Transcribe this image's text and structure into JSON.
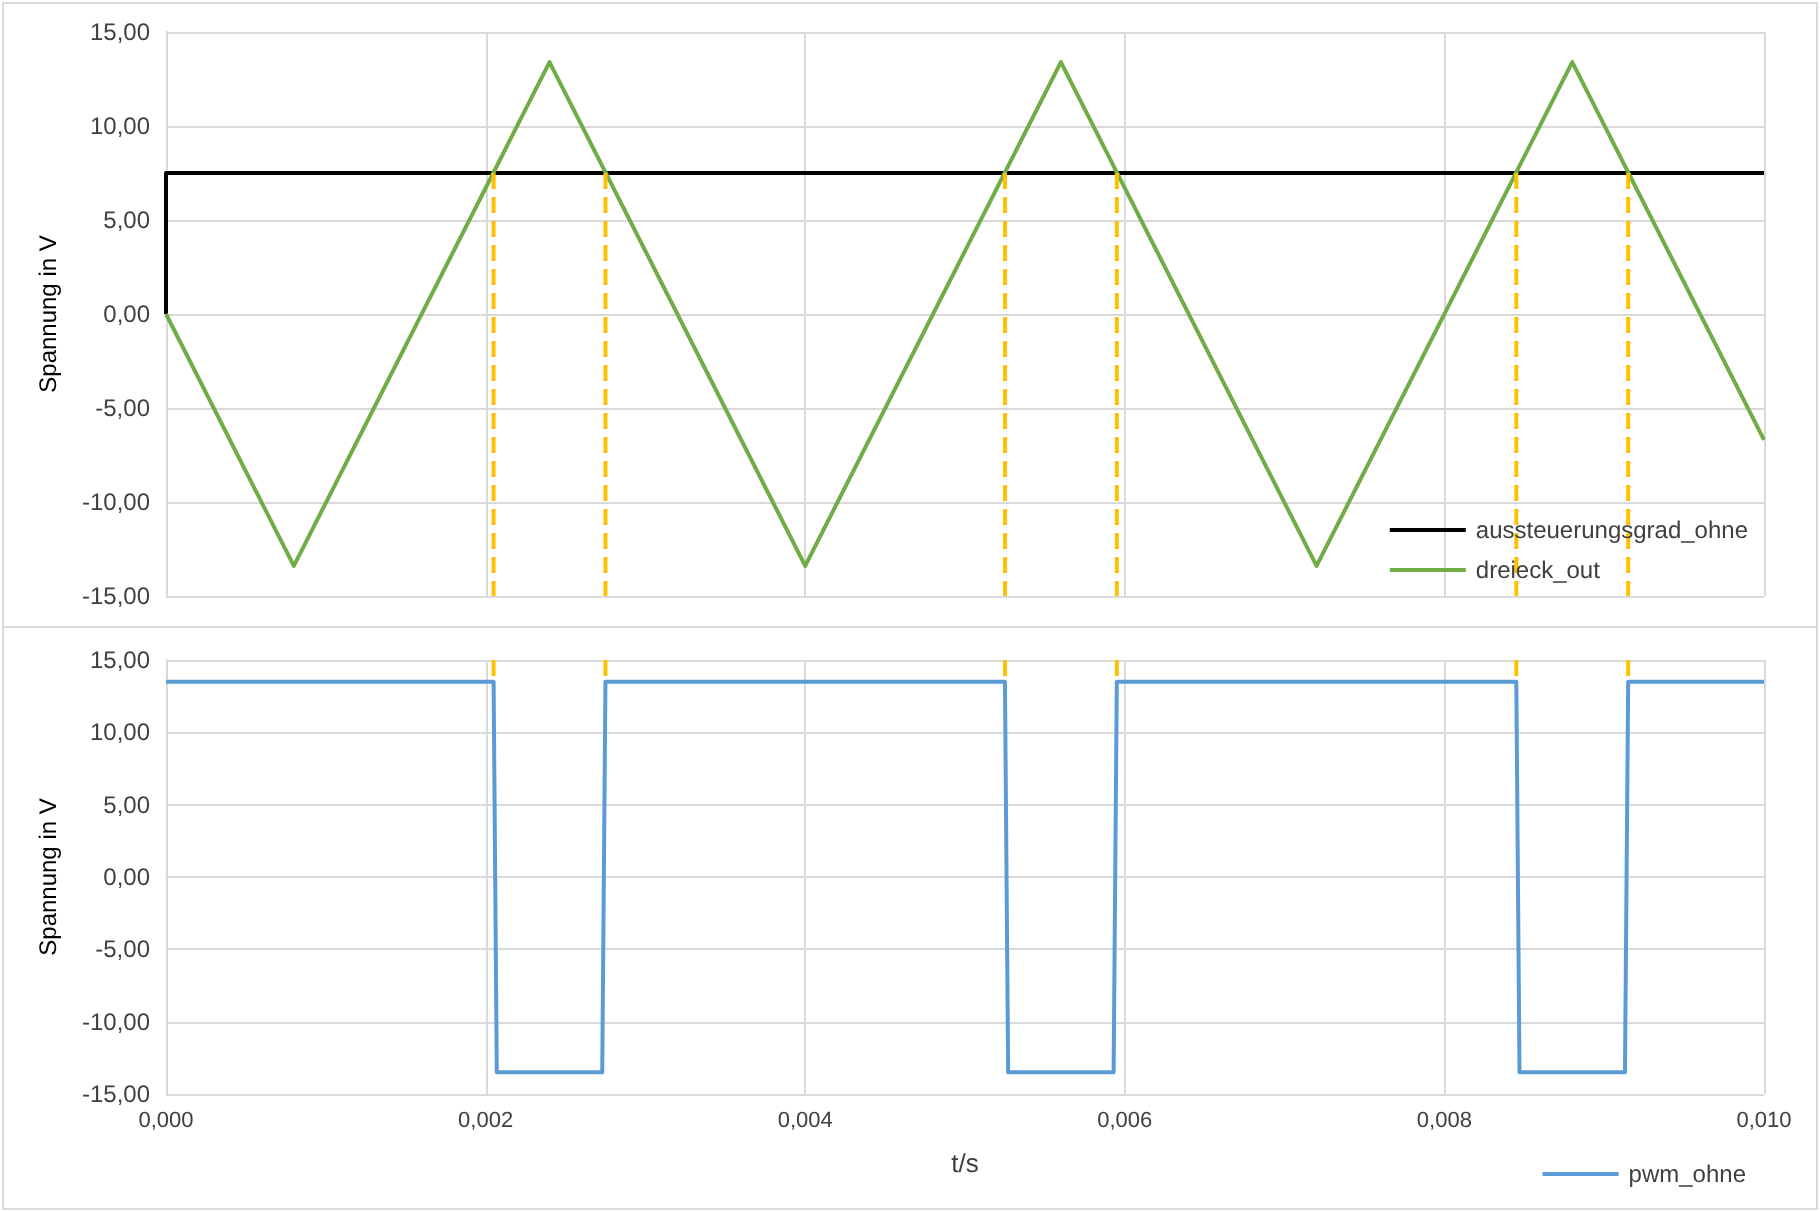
{
  "chart_data": [
    {
      "type": "line",
      "ylabel": "Spannung in V",
      "xlim": [
        0,
        0.01
      ],
      "xticks": [
        {
          "value": 0,
          "label": null
        },
        {
          "value": 0.002,
          "label": null
        },
        {
          "value": 0.004,
          "label": null
        },
        {
          "value": 0.006,
          "label": null
        },
        {
          "value": 0.008,
          "label": null
        },
        {
          "value": 0.01,
          "label": null
        }
      ],
      "ylim": [
        -15,
        15
      ],
      "yticks": [
        {
          "value": -15,
          "label": "-15,00"
        },
        {
          "value": -10,
          "label": "-10,00"
        },
        {
          "value": -5,
          "label": "-5,00"
        },
        {
          "value": 0,
          "label": "0,00"
        },
        {
          "value": 5,
          "label": "5,00"
        },
        {
          "value": 10,
          "label": "10,00"
        },
        {
          "value": 15,
          "label": "15,00"
        }
      ],
      "tick_labels": "y",
      "grid": true,
      "legend": "bottom right",
      "marker": "none",
      "series": [
        {
          "name": "aussteuerungsgrad_ohne",
          "color": "#000000",
          "x": [
            0,
            0,
            0.01
          ],
          "values": [
            0,
            7.5,
            7.5
          ]
        },
        {
          "name": "dreieck_out",
          "color": "#70ad47",
          "x": [
            0,
            0.0008,
            0.0024,
            0.004,
            0.0056,
            0.0072,
            0.0088,
            0.01
          ],
          "values": [
            0,
            -13.4,
            13.4,
            -13.4,
            13.4,
            -13.4,
            13.4,
            -6.7
          ]
        },
        {
          "color": "#ffc000",
          "line_style": "dashed",
          "x": [
            0.00205,
            0.00205
          ],
          "values": [
            7.5,
            -15
          ]
        },
        {
          "color": "#ffc000",
          "line_style": "dashed",
          "x": [
            0.00275,
            0.00275
          ],
          "values": [
            7.5,
            -15
          ]
        },
        {
          "color": "#ffc000",
          "line_style": "dashed",
          "x": [
            0.00525,
            0.00525
          ],
          "values": [
            7.5,
            -15
          ]
        },
        {
          "color": "#ffc000",
          "line_style": "dashed",
          "x": [
            0.00595,
            0.00595
          ],
          "values": [
            7.5,
            -15
          ]
        },
        {
          "color": "#ffc000",
          "line_style": "dashed",
          "x": [
            0.00845,
            0.00845
          ],
          "values": [
            7.5,
            -15
          ]
        },
        {
          "color": "#ffc000",
          "line_style": "dashed",
          "x": [
            0.00915,
            0.00915
          ],
          "values": [
            7.5,
            -15
          ]
        }
      ]
    },
    {
      "type": "line",
      "ylabel": "Spannung in V",
      "xlabel": "t/s",
      "xlim": [
        0,
        0.01
      ],
      "xticks": [
        {
          "value": 0,
          "label": "0,000"
        },
        {
          "value": 0.002,
          "label": "0,002"
        },
        {
          "value": 0.004,
          "label": "0,004"
        },
        {
          "value": 0.006,
          "label": "0,006"
        },
        {
          "value": 0.008,
          "label": "0,008"
        },
        {
          "value": 0.01,
          "label": "0,010"
        }
      ],
      "ylim": [
        -15,
        15
      ],
      "yticks": [
        {
          "value": -15,
          "label": "-15,00"
        },
        {
          "value": -10,
          "label": "-10,00"
        },
        {
          "value": -5,
          "label": "-5,00"
        },
        {
          "value": 0,
          "label": "0,00"
        },
        {
          "value": 5,
          "label": "5,00"
        },
        {
          "value": 10,
          "label": "10,00"
        },
        {
          "value": 15,
          "label": "15,00"
        }
      ],
      "grid": true,
      "legend": "bottom right",
      "marker": "none",
      "series": [
        {
          "name": "pwm_ohne",
          "color": "#5b9bd5",
          "x": [
            0,
            0.00205,
            0.00207,
            0.00273,
            0.00275,
            0.00525,
            0.00527,
            0.00593,
            0.00595,
            0.00845,
            0.00847,
            0.00913,
            0.00915,
            0.01
          ],
          "values": [
            13.5,
            13.5,
            -13.5,
            -13.5,
            13.5,
            13.5,
            -13.5,
            -13.5,
            13.5,
            13.5,
            -13.5,
            -13.5,
            13.5,
            13.5
          ]
        },
        {
          "color": "#ffc000",
          "line_style": "dashed",
          "x": [
            0.00205,
            0.00205
          ],
          "values": [
            15,
            13.5
          ]
        },
        {
          "color": "#ffc000",
          "line_style": "dashed",
          "x": [
            0.00275,
            0.00275
          ],
          "values": [
            15,
            13.5
          ]
        },
        {
          "color": "#ffc000",
          "line_style": "dashed",
          "x": [
            0.00525,
            0.00525
          ],
          "values": [
            15,
            13.5
          ]
        },
        {
          "color": "#ffc000",
          "line_style": "dashed",
          "x": [
            0.00595,
            0.00595
          ],
          "values": [
            15,
            13.5
          ]
        },
        {
          "color": "#ffc000",
          "line_style": "dashed",
          "x": [
            0.00845,
            0.00845
          ],
          "values": [
            15,
            13.5
          ]
        },
        {
          "color": "#ffc000",
          "line_style": "dashed",
          "x": [
            0.00915,
            0.00915
          ],
          "values": [
            15,
            13.5
          ]
        }
      ]
    }
  ]
}
